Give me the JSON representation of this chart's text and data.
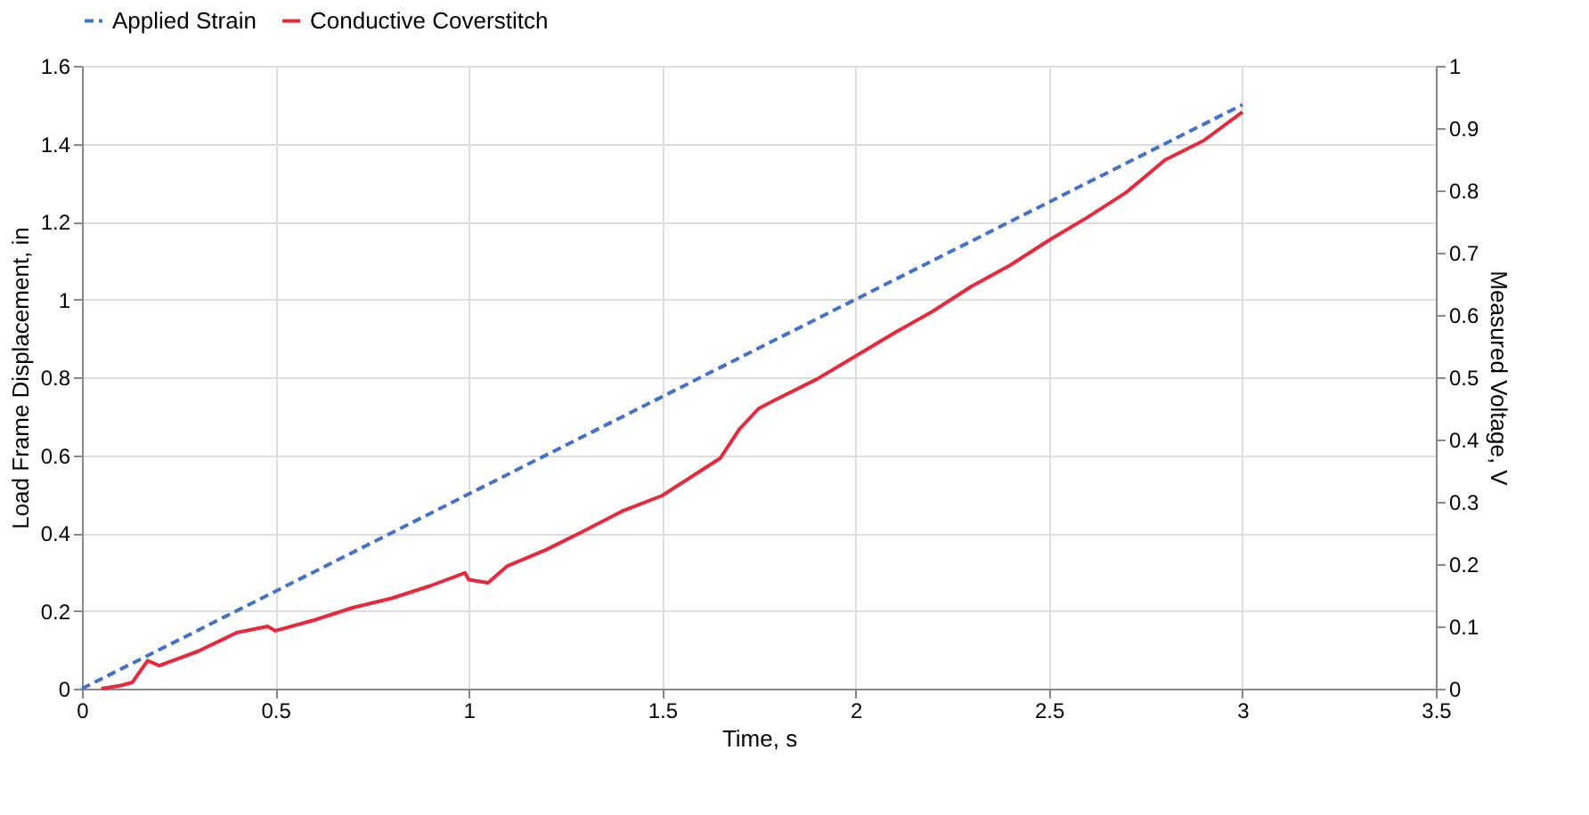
{
  "chart_data": {
    "type": "line",
    "xlabel": "Time, s",
    "ylabel": "Load Frame Displacement, in",
    "y2label": "Measured Voltage, V",
    "xlim": [
      0,
      3.5
    ],
    "xticks": [
      0,
      0.5,
      1,
      1.5,
      2,
      2.5,
      3,
      3.5
    ],
    "ylim": [
      0,
      1.6
    ],
    "yticks": [
      0,
      0.2,
      0.4,
      0.6,
      0.8,
      1,
      1.2,
      1.4,
      1.6
    ],
    "y2lim": [
      0,
      1
    ],
    "y2ticks": [
      0,
      0.1,
      0.2,
      0.3,
      0.4,
      0.5,
      0.6,
      0.7,
      0.8,
      0.9,
      1
    ],
    "grid": true,
    "legend": "top",
    "marker": "none",
    "series": [
      {
        "name": "Applied Strain",
        "color": "#4472c4",
        "line_style": "dashed",
        "x": [
          0,
          3
        ],
        "values": [
          0,
          1.5
        ]
      },
      {
        "name": "Conductive Coverstitch",
        "color": "#e8283c",
        "line_style": "solid",
        "axis": "y2",
        "x": [
          0.05,
          0.1,
          0.13,
          0.17,
          0.2,
          0.3,
          0.4,
          0.48,
          0.5,
          0.6,
          0.7,
          0.8,
          0.9,
          0.99,
          1.0,
          1.05,
          1.1,
          1.2,
          1.3,
          1.4,
          1.5,
          1.6,
          1.65,
          1.7,
          1.75,
          1.8,
          1.9,
          2.0,
          2.1,
          2.2,
          2.3,
          2.4,
          2.5,
          2.6,
          2.7,
          2.8,
          2.9,
          3.0
        ],
        "values": [
          0,
          0.005,
          0.01,
          0.045,
          0.037,
          0.06,
          0.09,
          0.1,
          0.093,
          0.11,
          0.13,
          0.145,
          0.165,
          0.186,
          0.175,
          0.17,
          0.197,
          0.223,
          0.254,
          0.286,
          0.31,
          0.35,
          0.37,
          0.417,
          0.45,
          0.466,
          0.497,
          0.534,
          0.571,
          0.606,
          0.646,
          0.68,
          0.72,
          0.757,
          0.797,
          0.849,
          0.88,
          0.926
        ]
      }
    ]
  }
}
